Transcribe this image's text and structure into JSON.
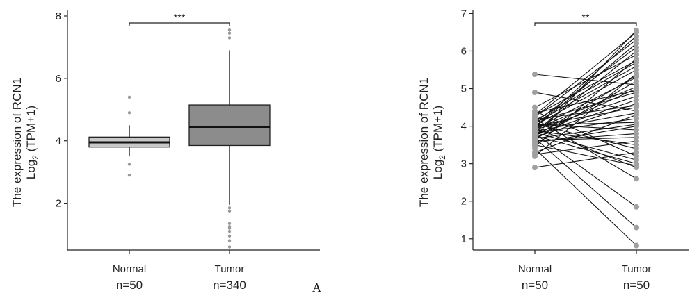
{
  "figure_label": "A",
  "chart_data": [
    {
      "type": "box",
      "ylabel_line1": "The expression of RCN1",
      "ylabel_line2_base": "Log",
      "ylabel_line2_sub": "2",
      "ylabel_line2_rest": " (TPM+1)",
      "ylim": [
        0.5,
        8.2
      ],
      "y_ticks": [
        2,
        4,
        6,
        8
      ],
      "categories": [
        "Normal",
        "Tumor"
      ],
      "counts": [
        "n=50",
        "n=340"
      ],
      "significance": "***",
      "box_colors": [
        "#c8c8c8",
        "#8c8c8c"
      ],
      "boxes": [
        {
          "name": "Normal",
          "q1": 3.8,
          "median": 3.95,
          "q3": 4.12,
          "whisker_low": 3.5,
          "whisker_high": 4.5,
          "outliers": [
            5.4,
            4.9,
            3.25,
            2.9
          ]
        },
        {
          "name": "Tumor",
          "q1": 3.85,
          "median": 4.45,
          "q3": 5.15,
          "whisker_low": 1.95,
          "whisker_high": 6.9,
          "outliers": [
            7.55,
            7.45,
            7.3,
            1.85,
            1.75,
            1.35,
            1.25,
            1.2,
            1.1,
            0.95,
            0.8,
            0.6
          ]
        }
      ]
    },
    {
      "type": "paired",
      "ylabel_line1": "The expression of RCN1",
      "ylabel_line2_base": "Log",
      "ylabel_line2_sub": "2",
      "ylabel_line2_rest": " (TPM+1)",
      "ylim": [
        0.7,
        7.1
      ],
      "y_ticks": [
        1,
        2,
        3,
        4,
        5,
        6,
        7
      ],
      "categories": [
        "Normal",
        "Tumor"
      ],
      "counts": [
        "n=50",
        "n=50"
      ],
      "significance": "**",
      "point_color": "#a0a0a0",
      "line_color": "#111111",
      "pairs": [
        [
          5.38,
          5.1
        ],
        [
          4.9,
          4.4
        ],
        [
          4.5,
          5.9
        ],
        [
          4.4,
          3.2
        ],
        [
          4.3,
          6.5
        ],
        [
          4.25,
          6.3
        ],
        [
          4.2,
          2.6
        ],
        [
          4.15,
          5.7
        ],
        [
          4.1,
          6.1
        ],
        [
          4.05,
          3.9
        ],
        [
          4.02,
          5.5
        ],
        [
          4.0,
          4.5
        ],
        [
          3.98,
          6.4
        ],
        [
          3.95,
          2.9
        ],
        [
          3.93,
          5.3
        ],
        [
          3.9,
          4.8
        ],
        [
          3.88,
          3.5
        ],
        [
          3.85,
          6.0
        ],
        [
          3.82,
          4.2
        ],
        [
          3.8,
          1.85
        ],
        [
          3.78,
          5.0
        ],
        [
          3.75,
          3.0
        ],
        [
          3.72,
          6.55
        ],
        [
          3.7,
          4.6
        ],
        [
          3.68,
          1.3
        ],
        [
          3.65,
          5.2
        ],
        [
          3.6,
          3.8
        ],
        [
          3.55,
          4.0
        ],
        [
          3.5,
          2.95
        ],
        [
          3.45,
          5.8
        ],
        [
          3.4,
          0.82
        ],
        [
          3.3,
          4.3
        ],
        [
          3.25,
          3.6
        ],
        [
          3.2,
          5.4
        ],
        [
          2.9,
          3.3
        ],
        [
          4.12,
          4.9
        ],
        [
          4.08,
          5.6
        ],
        [
          4.06,
          3.4
        ],
        [
          4.03,
          4.1
        ],
        [
          3.97,
          6.2
        ],
        [
          3.92,
          5.05
        ],
        [
          3.87,
          4.35
        ],
        [
          3.83,
          3.1
        ],
        [
          3.77,
          4.7
        ],
        [
          3.73,
          5.35
        ],
        [
          3.67,
          4.05
        ],
        [
          4.18,
          4.55
        ],
        [
          4.28,
          5.75
        ],
        [
          3.62,
          3.7
        ],
        [
          4.35,
          4.95
        ]
      ]
    }
  ]
}
